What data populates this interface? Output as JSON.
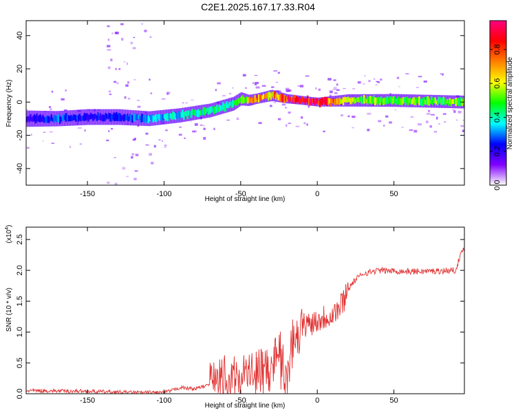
{
  "title": "C2E1.2025.167.17.33.R04",
  "chart_data": [
    {
      "type": "heatmap",
      "xlabel": "Height of straight line (km)",
      "ylabel": "Frequency (Hz)",
      "xlim": [
        -190,
        96
      ],
      "ylim": [
        -50,
        49
      ],
      "xticks": [
        -150,
        -100,
        -50,
        0,
        50
      ],
      "yticks": [
        -40,
        -20,
        0,
        20,
        40
      ],
      "colorbar": {
        "label": "Normalized spectral amplitude",
        "range": [
          0,
          0.97
        ],
        "ticks": [
          0.0,
          0.2,
          0.4,
          0.6,
          0.8
        ],
        "colors": [
          "#ffffff",
          "#8000ff",
          "#0000ff",
          "#00ffff",
          "#00ff00",
          "#ffff00",
          "#ff8000",
          "#ff0000",
          "#ff0080"
        ]
      },
      "ridge": {
        "x": [
          -190,
          -170,
          -150,
          -130,
          -110,
          -90,
          -70,
          -55,
          -50,
          -45,
          -40,
          -35,
          -30,
          -20,
          -10,
          0,
          20,
          50,
          96
        ],
        "freq": [
          -10,
          -10,
          -9,
          -9,
          -10,
          -8,
          -5,
          -1,
          2,
          1,
          2,
          3,
          4,
          2,
          1,
          0,
          1,
          1,
          0
        ],
        "amplitude": [
          0.2,
          0.3,
          0.25,
          0.25,
          0.35,
          0.4,
          0.45,
          0.45,
          0.5,
          0.7,
          0.8,
          0.75,
          0.7,
          0.9,
          0.95,
          0.95,
          0.6,
          0.55,
          0.55
        ]
      }
    },
    {
      "type": "line",
      "xlabel": "Height of straight line (km)",
      "ylabel": "SNR (10 * v/v)",
      "yscale_label": "(x10",
      "yscale_exp": "4",
      "yscale_close": ")",
      "xlim": [
        -190,
        96
      ],
      "ylim": [
        0,
        2.7
      ],
      "xticks": [
        -150,
        -100,
        -50,
        0,
        50
      ],
      "yticks": [
        "0.0",
        "0.5",
        "1.0",
        "1.5",
        "2.0",
        "2.5"
      ],
      "color": "#e03030",
      "series": [
        {
          "x": [
            -190,
            -150,
            -120,
            -100,
            -95,
            -90,
            -80,
            -70,
            -60,
            -50,
            -40,
            -30,
            -25,
            -20,
            -15,
            -10,
            0,
            10,
            15,
            20,
            25,
            30,
            40,
            60,
            80,
            90,
            96
          ],
          "values": [
            0.05,
            0.04,
            0.02,
            0.02,
            0.05,
            0.1,
            0.08,
            0.15,
            0.2,
            0.3,
            0.35,
            0.4,
            0.8,
            0.5,
            0.9,
            1.1,
            1.2,
            1.3,
            1.4,
            1.7,
            1.85,
            1.95,
            2.0,
            1.98,
            1.99,
            2.0,
            2.4
          ]
        }
      ]
    }
  ]
}
